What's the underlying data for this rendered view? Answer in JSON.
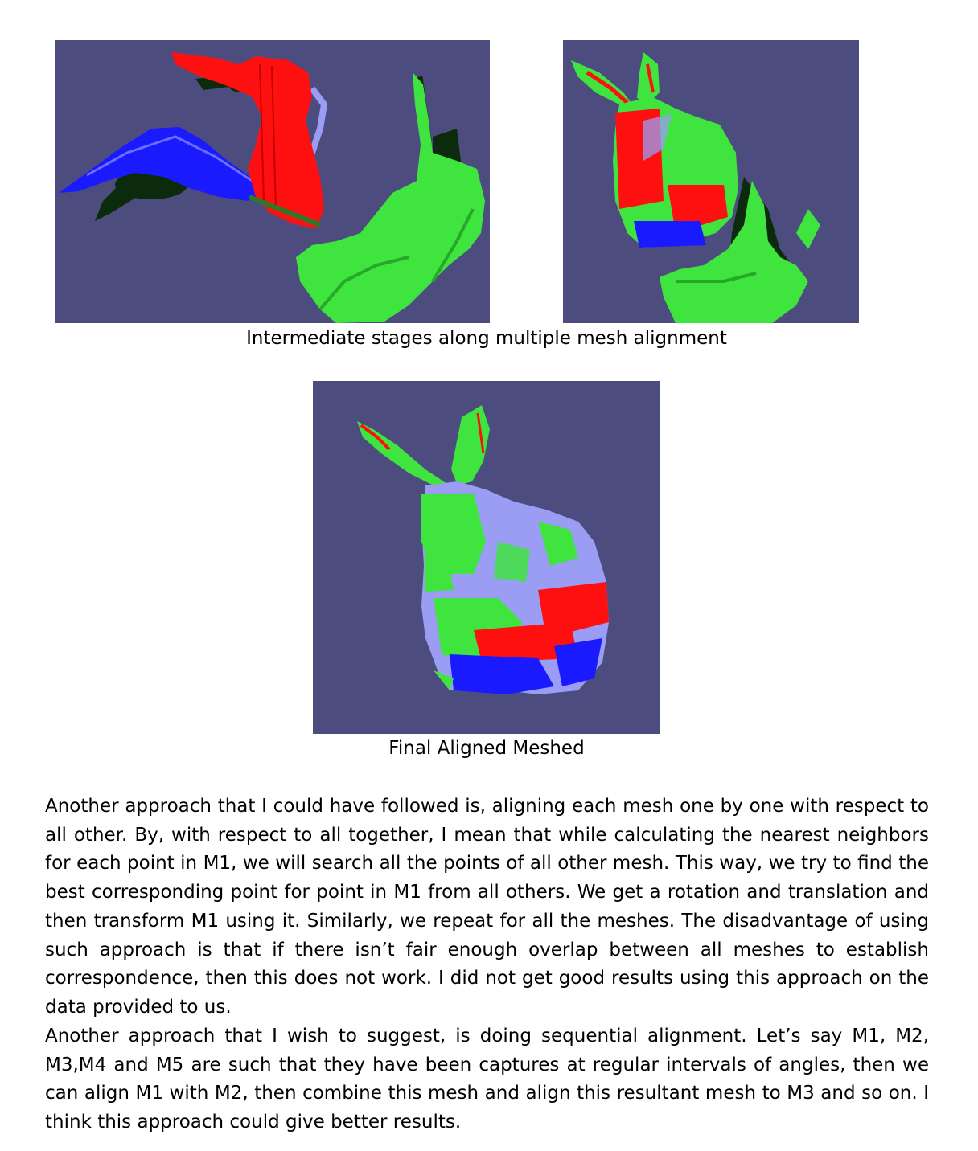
{
  "figures": {
    "intermediate_caption": "Intermediate stages along multiple mesh alignment",
    "final_caption": "Final Aligned Meshed"
  },
  "colors": {
    "background": "#4d4c7e",
    "mesh_red": "#ff1010",
    "mesh_green": "#3fe43f",
    "mesh_blue": "#1a1aff",
    "mesh_lavender": "#9b9cf4",
    "shadow": "#0c2a0c"
  },
  "paragraphs": [
    "Another approach that I could have followed is, aligning each mesh one by one with respect to all other. By, with respect to all together, I mean that while calculating the nearest neighbors for each point in M1, we will search all the points of all other mesh. This way, we try to find the best corresponding point for point in M1 from all others. We get a rotation and translation and then transform M1 using it. Similarly, we repeat for all the meshes. The disadvantage of using such approach is that if there isn’t fair enough overlap between all meshes to establish correspondence, then this does not work. I did not get good results using this approach on the data provided to us.",
    "Another approach that I wish to suggest, is doing sequential alignment. Let’s say M1, M2, M3,M4 and M5 are such that they have been captures at regular intervals of angles, then we can align M1 with M2, then combine this mesh and align this resultant mesh to M3 and so on. I think this approach could give better results."
  ]
}
